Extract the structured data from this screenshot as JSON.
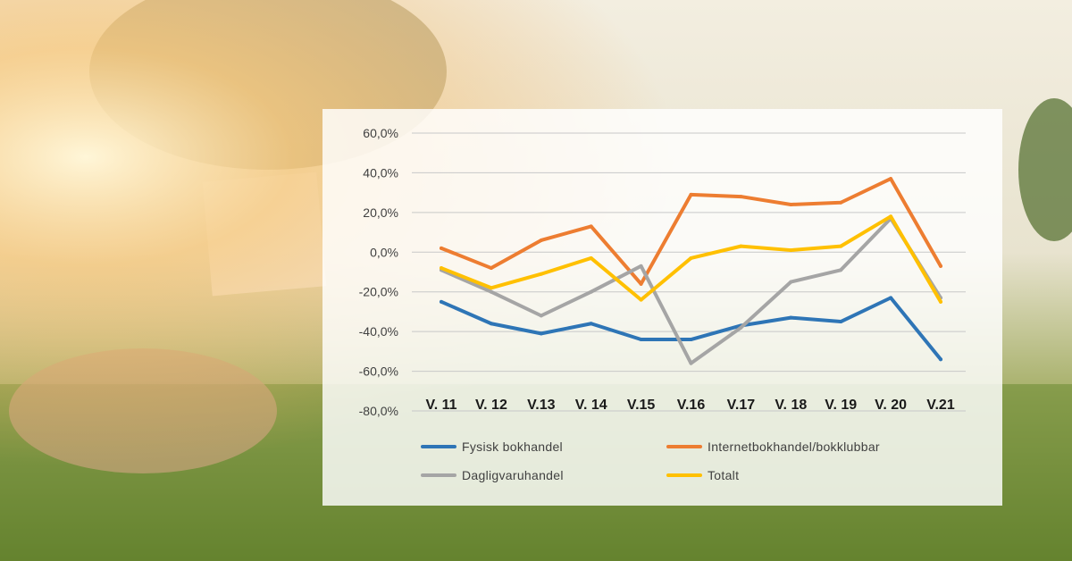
{
  "chart_data": {
    "type": "line",
    "categories": [
      "V. 11",
      "V. 12",
      "V.13",
      "V. 14",
      "V.15",
      "V.16",
      "V.17",
      "V. 18",
      "V. 19",
      "V. 20",
      "V.21"
    ],
    "ylim": [
      -80,
      60
    ],
    "yticks": [
      60,
      40,
      20,
      0,
      -20,
      -40,
      -60,
      -80
    ],
    "ytick_labels": [
      "60,0%",
      "40,0%",
      "20,0%",
      "0,0%",
      "-20,0%",
      "-40,0%",
      "-60,0%",
      "-80,0%"
    ],
    "grid": true,
    "legend_position": "bottom",
    "series": [
      {
        "name": "Fysisk bokhandel",
        "color": "#2E75B6",
        "values": [
          -25,
          -36,
          -41,
          -36,
          -44,
          -44,
          -37,
          -33,
          -35,
          -23,
          -54
        ]
      },
      {
        "name": "Internetbokhandel/bokklubbar",
        "color": "#ED7D31",
        "values": [
          2,
          -8,
          6,
          13,
          -16,
          29,
          28,
          24,
          25,
          37,
          -7
        ]
      },
      {
        "name": "Dagligvaruhandel",
        "color": "#A5A5A5",
        "values": [
          -9,
          -20,
          -32,
          -20,
          -7,
          -56,
          -38,
          -15,
          -9,
          17,
          -23
        ]
      },
      {
        "name": "Totalt",
        "color": "#FFC000",
        "values": [
          -8,
          -18,
          -11,
          -3,
          -24,
          -3,
          3,
          1,
          3,
          18,
          -25
        ]
      }
    ]
  }
}
